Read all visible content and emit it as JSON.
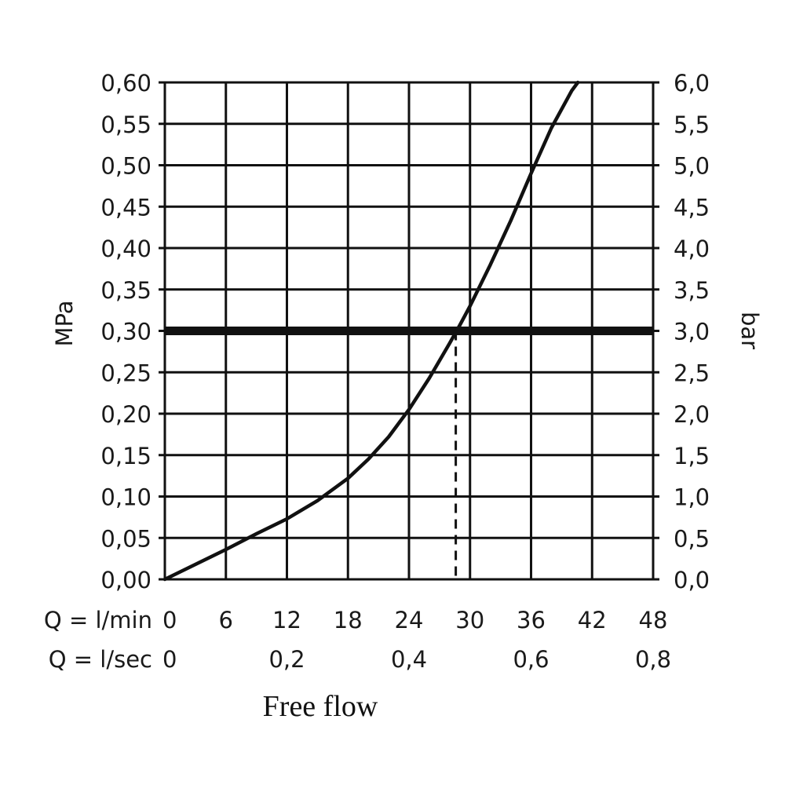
{
  "chart_data": {
    "type": "line",
    "title": "Free flow",
    "ylabel_left": "MPa",
    "ylabel_right": "bar",
    "x_unit": "l/min",
    "xlim": [
      0,
      48
    ],
    "ylim": [
      0,
      0.6
    ],
    "ylim_right": [
      0,
      6
    ],
    "x_ticks": [
      "0",
      "6",
      "12",
      "18",
      "24",
      "30",
      "36",
      "42",
      "48"
    ],
    "x_ticks_values": [
      0,
      6,
      12,
      18,
      24,
      30,
      36,
      42,
      48
    ],
    "x_row_label": "Q = l/min",
    "x2_ticks": [
      "0",
      "0,2",
      "0,4",
      "0,6",
      "0,8"
    ],
    "x2_ticks_values": [
      0,
      12,
      24,
      36,
      48
    ],
    "x2_row_label": "Q = l/sec",
    "y_left_ticks": [
      "0,00",
      "0,05",
      "0,10",
      "0,15",
      "0,20",
      "0,25",
      "0,30",
      "0,35",
      "0,40",
      "0,45",
      "0,50",
      "0,55",
      "0,60"
    ],
    "y_right_ticks": [
      "0,0",
      "0,5",
      "1,0",
      "1,5",
      "2,0",
      "2,5",
      "3,0",
      "3,5",
      "4,0",
      "4,5",
      "5,0",
      "5,5",
      "6,0"
    ],
    "y_ticks_values": [
      0,
      0.05,
      0.1,
      0.15,
      0.2,
      0.25,
      0.3,
      0.35,
      0.4,
      0.45,
      0.5,
      0.55,
      0.6
    ],
    "grid": true,
    "series": [
      {
        "x": [
          0,
          3,
          6,
          9,
          12,
          15,
          18,
          20,
          22,
          24,
          26,
          28,
          29,
          30,
          32,
          34,
          36,
          38,
          40,
          40.6
        ],
        "y": [
          0,
          0.018,
          0.036,
          0.055,
          0.073,
          0.095,
          0.122,
          0.145,
          0.172,
          0.205,
          0.243,
          0.285,
          0.307,
          0.33,
          0.38,
          0.433,
          0.49,
          0.545,
          0.59,
          0.6
        ]
      }
    ],
    "reference_line": {
      "y": 0.3
    },
    "marker_line": {
      "x": 28.6,
      "y": 0.3
    }
  },
  "colors": {
    "line": "#111111",
    "grid": "#111111",
    "background": "#ffffff"
  }
}
